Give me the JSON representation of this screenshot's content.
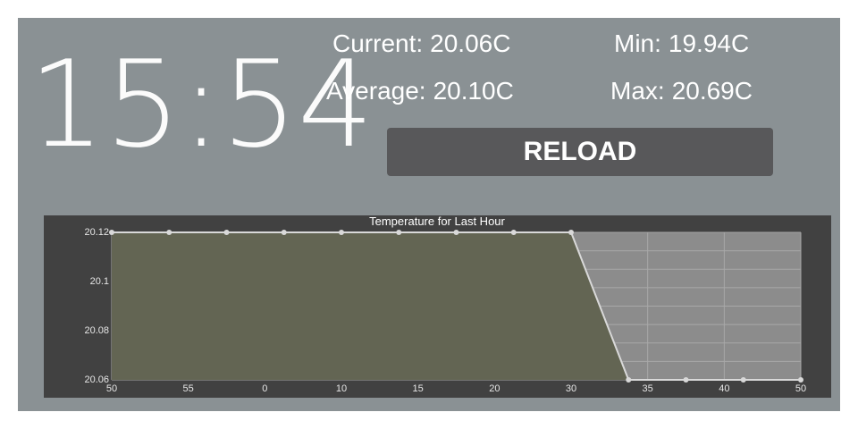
{
  "clock": {
    "time": "15:54"
  },
  "stats": {
    "current_label": "Current:",
    "current_value": "20.06C",
    "min_label": "Min:",
    "min_value": "19.94C",
    "average_label": "Average:",
    "average_value": "20.10C",
    "max_label": "Max:",
    "max_value": "20.69C"
  },
  "reload": {
    "label": "RELOAD"
  },
  "colors": {
    "panel_background": "#8a9194",
    "button_background": "#58585a",
    "chart_frame": "#414141",
    "chart_plot_background": "#8c8c8c",
    "area_fill": "#636553",
    "area_line": "#d9d9d9"
  },
  "chart_data": {
    "type": "area",
    "title": "Temperature for Last Hour",
    "xlabel": "",
    "ylabel": "",
    "x_tick_labels": [
      "50",
      "55",
      "0",
      "10",
      "15",
      "20",
      "30",
      "35",
      "40",
      "50"
    ],
    "y_tick_labels": [
      "20.12",
      "20.1",
      "20.08",
      "20.06"
    ],
    "ylim": [
      20.06,
      20.12
    ],
    "grid": true,
    "legend": "none",
    "series": [
      {
        "points": [
          {
            "x": 0.0,
            "y": 20.12
          },
          {
            "x": 0.75,
            "y": 20.12
          },
          {
            "x": 1.5,
            "y": 20.12
          },
          {
            "x": 2.25,
            "y": 20.12
          },
          {
            "x": 3.0,
            "y": 20.12
          },
          {
            "x": 3.75,
            "y": 20.12
          },
          {
            "x": 4.5,
            "y": 20.12
          },
          {
            "x": 5.25,
            "y": 20.12
          },
          {
            "x": 6.0,
            "y": 20.12
          },
          {
            "x": 6.75,
            "y": 20.06
          },
          {
            "x": 7.5,
            "y": 20.06
          },
          {
            "x": 8.25,
            "y": 20.06
          },
          {
            "x": 9.0,
            "y": 20.06
          }
        ]
      }
    ]
  }
}
